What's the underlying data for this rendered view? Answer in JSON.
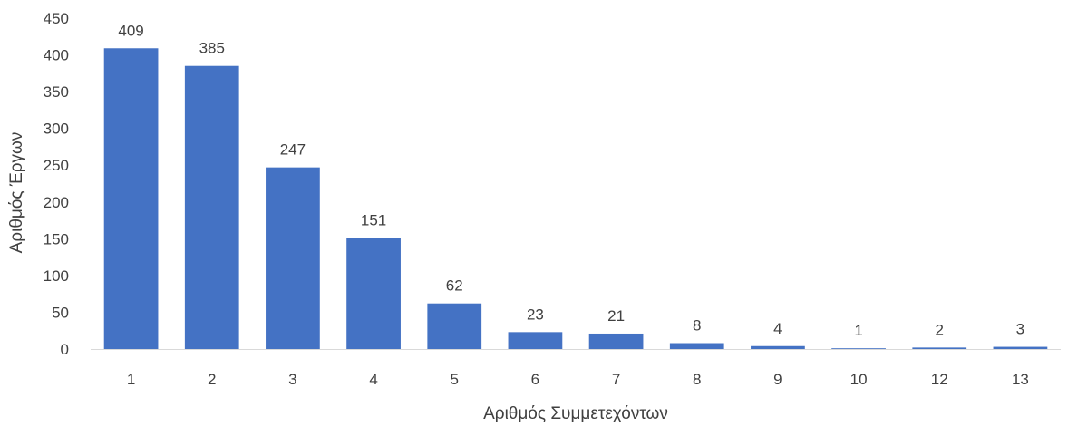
{
  "chart_data": {
    "type": "bar",
    "title": "",
    "xlabel": "Αριθμός Συμμετεχόντων",
    "ylabel": "Αριθμός Έργων",
    "categories": [
      "1",
      "2",
      "3",
      "4",
      "5",
      "6",
      "7",
      "8",
      "9",
      "10",
      "12",
      "13"
    ],
    "values": [
      409,
      385,
      247,
      151,
      62,
      23,
      21,
      8,
      4,
      1,
      2,
      3
    ],
    "data_labels": [
      "409",
      "385",
      "247",
      "151",
      "62",
      "23",
      "21",
      "8",
      "4",
      "1",
      "2",
      "3"
    ],
    "ylim": [
      0,
      450
    ],
    "yticks": [
      "0",
      "50",
      "100",
      "150",
      "200",
      "250",
      "300",
      "350",
      "400",
      "450"
    ],
    "grid": false,
    "legend": "none",
    "bar_color": "#4472C4",
    "text_color": "#404040",
    "axis_line_color": "#D9D9D9"
  }
}
